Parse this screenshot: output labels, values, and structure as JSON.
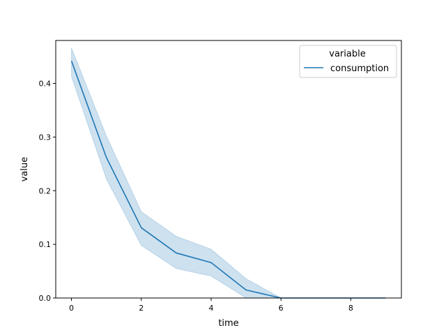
{
  "chart_data": {
    "type": "line",
    "title": "",
    "xlabel": "time",
    "ylabel": "value",
    "xlim": [
      -0.45,
      9.45
    ],
    "ylim": [
      0,
      0.48
    ],
    "xticks": [
      0,
      2,
      4,
      6,
      8
    ],
    "xtick_labels": [
      "0",
      "2",
      "4",
      "6",
      "8"
    ],
    "yticks": [
      0.0,
      0.1,
      0.2,
      0.3,
      0.4
    ],
    "ytick_labels": [
      "0.0",
      "0.1",
      "0.2",
      "0.3",
      "0.4"
    ],
    "grid": false,
    "legend": {
      "title": "variable",
      "position": "top-right",
      "entries": [
        "consumption"
      ]
    },
    "x": [
      0,
      1,
      2,
      3,
      4,
      5,
      6,
      7,
      8,
      9
    ],
    "series": [
      {
        "name": "consumption",
        "color": "#1f77b4",
        "band_color": "#1f77b4",
        "values": [
          0.442,
          0.262,
          0.131,
          0.084,
          0.066,
          0.015,
          0.0,
          0.0,
          0.0,
          0.0
        ],
        "ci_lower": [
          0.413,
          0.222,
          0.098,
          0.055,
          0.041,
          0.0,
          0.0,
          0.0,
          0.0,
          0.0
        ],
        "ci_upper": [
          0.466,
          0.302,
          0.161,
          0.115,
          0.091,
          0.036,
          0.0,
          0.0,
          0.0,
          0.0
        ]
      }
    ]
  }
}
